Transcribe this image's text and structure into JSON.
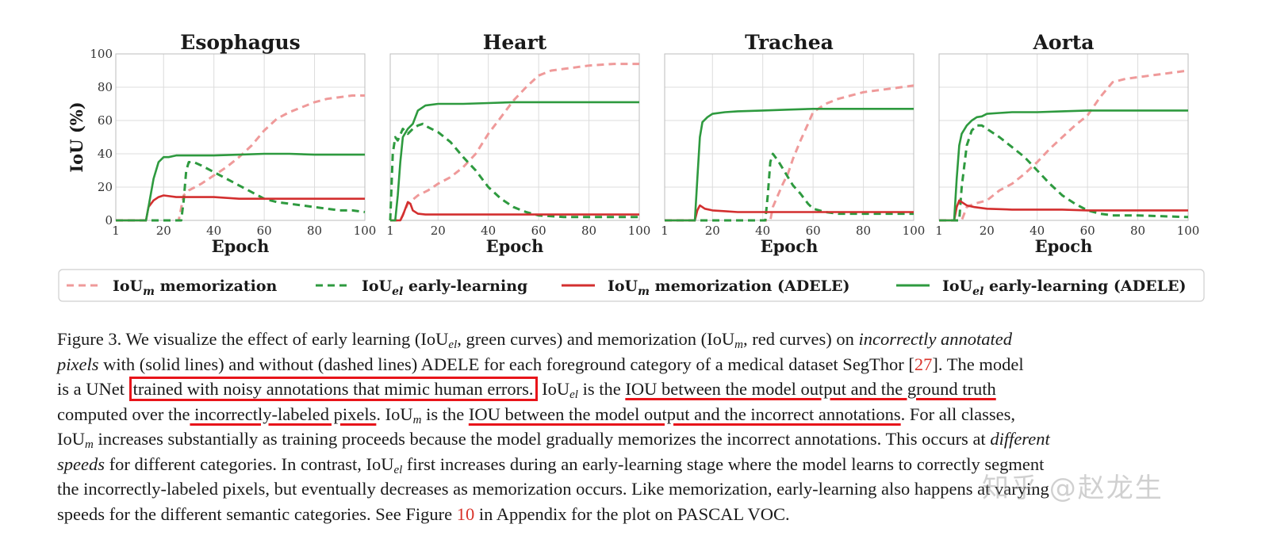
{
  "chart_data": [
    {
      "type": "line",
      "title": "Esophagus",
      "xlabel": "Epoch",
      "ylabel": "IoU (%)",
      "xlim": [
        1,
        100
      ],
      "ylim": [
        0,
        100
      ],
      "xticks": [
        1,
        20,
        40,
        60,
        80,
        100
      ],
      "yticks": [
        0,
        20,
        40,
        60,
        80,
        100
      ],
      "grid": true,
      "series": [
        {
          "name": "IoU_m memorization",
          "x": [
            1,
            13,
            26,
            28,
            30,
            35,
            40,
            45,
            50,
            55,
            60,
            65,
            70,
            75,
            80,
            85,
            90,
            95,
            100
          ],
          "y": [
            0,
            0,
            0,
            15,
            18,
            22,
            27,
            32,
            38,
            45,
            54,
            61,
            65,
            68,
            71,
            73,
            74,
            75,
            75
          ]
        },
        {
          "name": "IoU_el early-learning",
          "x": [
            1,
            27,
            28,
            29,
            30,
            32,
            35,
            40,
            45,
            50,
            55,
            60,
            65,
            70,
            75,
            80,
            85,
            90,
            95,
            100
          ],
          "y": [
            0,
            0,
            12,
            30,
            35,
            35,
            33,
            29,
            25,
            21,
            17,
            13,
            11,
            10,
            9,
            8,
            7,
            6,
            6,
            5
          ]
        },
        {
          "name": "IoU_m memorization (ADELE)",
          "x": [
            1,
            13,
            14,
            16,
            18,
            20,
            25,
            30,
            40,
            50,
            60,
            70,
            80,
            90,
            100
          ],
          "y": [
            0,
            0,
            8,
            12,
            14,
            15,
            14,
            14,
            14,
            13,
            13,
            13,
            13,
            13,
            13
          ]
        },
        {
          "name": "IoU_el early-learning (ADELE)",
          "x": [
            1,
            13,
            14,
            16,
            18,
            20,
            22,
            25,
            30,
            40,
            50,
            60,
            70,
            80,
            90,
            100
          ],
          "y": [
            0,
            0,
            8,
            25,
            35,
            38,
            38,
            39,
            39,
            39,
            39.5,
            40,
            40,
            39.5,
            39.5,
            39.5
          ]
        }
      ]
    },
    {
      "type": "line",
      "title": "Heart",
      "xlabel": "Epoch",
      "xlim": [
        1,
        100
      ],
      "ylim": [
        0,
        100
      ],
      "xticks": [
        1,
        20,
        40,
        60,
        80,
        100
      ],
      "grid": true,
      "series": [
        {
          "name": "IoU_m memorization",
          "x": [
            1,
            3,
            5,
            8,
            12,
            16,
            20,
            25,
            30,
            35,
            40,
            45,
            50,
            55,
            60,
            65,
            70,
            75,
            80,
            85,
            90,
            95,
            100
          ],
          "y": [
            0,
            0,
            0,
            10,
            15,
            18,
            22,
            26,
            32,
            40,
            52,
            62,
            72,
            80,
            87,
            90,
            91,
            92,
            93,
            93.5,
            94,
            94,
            94
          ]
        },
        {
          "name": "IoU_el early-learning",
          "x": [
            1,
            2,
            3,
            4,
            6,
            8,
            10,
            12,
            14,
            16,
            20,
            25,
            30,
            35,
            40,
            45,
            50,
            55,
            60,
            70,
            80,
            90,
            100
          ],
          "y": [
            0,
            40,
            50,
            48,
            55,
            52,
            55,
            57,
            58,
            56,
            53,
            47,
            38,
            30,
            20,
            13,
            8,
            5,
            3,
            2,
            2,
            2,
            2
          ]
        },
        {
          "name": "IoU_m memorization (ADELE)",
          "x": [
            1,
            3,
            5,
            6,
            7,
            8,
            9,
            10,
            12,
            15,
            20,
            30,
            40,
            50,
            60,
            70,
            80,
            90,
            100
          ],
          "y": [
            0,
            0,
            0,
            3,
            7,
            11,
            10,
            6,
            4,
            3.5,
            3.5,
            3.5,
            3.5,
            3.5,
            3.5,
            3.5,
            3.5,
            3.5,
            3.5
          ]
        },
        {
          "name": "IoU_el early-learning (ADELE)",
          "x": [
            1,
            3,
            4,
            5,
            6,
            8,
            10,
            12,
            15,
            20,
            30,
            40,
            50,
            60,
            70,
            80,
            90,
            100
          ],
          "y": [
            0,
            0,
            15,
            35,
            50,
            55,
            58,
            66,
            69,
            70,
            70,
            70.5,
            71,
            71,
            71,
            71,
            71,
            71
          ]
        }
      ]
    },
    {
      "type": "line",
      "title": "Trachea",
      "xlabel": "Epoch",
      "xlim": [
        1,
        100
      ],
      "ylim": [
        0,
        100
      ],
      "xticks": [
        1,
        20,
        40,
        60,
        80,
        100
      ],
      "grid": true,
      "series": [
        {
          "name": "IoU_m memorization",
          "x": [
            1,
            43,
            44,
            46,
            48,
            50,
            52,
            55,
            58,
            60,
            65,
            70,
            75,
            80,
            85,
            90,
            95,
            100
          ],
          "y": [
            0,
            0,
            8,
            15,
            22,
            28,
            37,
            48,
            58,
            65,
            70,
            73,
            75,
            77,
            78,
            79,
            80,
            81
          ]
        },
        {
          "name": "IoU_el early-learning",
          "x": [
            1,
            41,
            42,
            43,
            44,
            46,
            48,
            50,
            52,
            55,
            58,
            60,
            65,
            70,
            80,
            90,
            100
          ],
          "y": [
            0,
            0,
            15,
            35,
            40,
            36,
            31,
            26,
            21,
            16,
            10,
            7,
            5,
            4,
            4,
            4,
            4
          ]
        },
        {
          "name": "IoU_m memorization (ADELE)",
          "x": [
            1,
            13,
            14,
            15,
            17,
            20,
            25,
            30,
            40,
            50,
            60,
            70,
            80,
            90,
            100
          ],
          "y": [
            0,
            0,
            6,
            9,
            7,
            6,
            5.5,
            5,
            5,
            5,
            5,
            5,
            5,
            5,
            5
          ]
        },
        {
          "name": "IoU_el early-learning (ADELE)",
          "x": [
            1,
            13,
            14,
            15,
            16,
            18,
            20,
            25,
            30,
            40,
            50,
            60,
            70,
            80,
            90,
            100
          ],
          "y": [
            0,
            0,
            25,
            50,
            59,
            62,
            64,
            65,
            65.5,
            66,
            66.5,
            67,
            67,
            67,
            67,
            67
          ]
        }
      ]
    },
    {
      "type": "line",
      "title": "Aorta",
      "xlabel": "Epoch",
      "xlim": [
        1,
        100
      ],
      "ylim": [
        0,
        100
      ],
      "xticks": [
        1,
        20,
        40,
        60,
        80,
        100
      ],
      "grid": true,
      "series": [
        {
          "name": "IoU_m memorization",
          "x": [
            1,
            10,
            12,
            15,
            20,
            25,
            30,
            35,
            40,
            45,
            50,
            55,
            60,
            65,
            70,
            75,
            80,
            85,
            90,
            95,
            100
          ],
          "y": [
            0,
            0,
            8,
            10,
            12,
            18,
            22,
            28,
            35,
            43,
            50,
            57,
            63,
            74,
            83,
            85,
            86,
            87,
            88,
            89,
            90
          ]
        },
        {
          "name": "IoU_el early-learning",
          "x": [
            1,
            9,
            10,
            12,
            14,
            16,
            18,
            20,
            25,
            30,
            35,
            40,
            45,
            50,
            55,
            60,
            65,
            70,
            80,
            90,
            100
          ],
          "y": [
            0,
            0,
            20,
            45,
            54,
            57,
            57,
            55,
            50,
            44,
            38,
            30,
            22,
            15,
            10,
            6,
            4,
            3,
            3,
            2.5,
            2
          ]
        },
        {
          "name": "IoU_m memorization (ADELE)",
          "x": [
            1,
            7,
            8,
            9,
            10,
            12,
            15,
            20,
            30,
            40,
            50,
            60,
            70,
            80,
            90,
            100
          ],
          "y": [
            0,
            0,
            8,
            12,
            11,
            9,
            8,
            7,
            6.5,
            6.5,
            6.5,
            6,
            6,
            6,
            6,
            6
          ]
        },
        {
          "name": "IoU_el early-learning (ADELE)",
          "x": [
            1,
            7,
            8,
            9,
            10,
            12,
            14,
            16,
            18,
            20,
            25,
            30,
            40,
            50,
            60,
            70,
            80,
            90,
            100
          ],
          "y": [
            0,
            0,
            25,
            45,
            52,
            57,
            60,
            62,
            62.5,
            64,
            64.5,
            65,
            65,
            65.5,
            66,
            66,
            66,
            66,
            66
          ]
        }
      ]
    }
  ],
  "legend": [
    {
      "label": "IoU",
      "sub": "m",
      "rest": " memorization",
      "color": "#ef9a9a",
      "dash": true
    },
    {
      "label": "IoU",
      "sub": "el",
      "rest": " early-learning",
      "color": "#2e9a3f",
      "dash": true
    },
    {
      "label": "IoU",
      "sub": "m",
      "rest": " memorization (ADELE)",
      "color": "#d32f2f",
      "dash": false
    },
    {
      "label": "IoU",
      "sub": "el",
      "rest": " early-learning (ADELE)",
      "color": "#2e9a3f",
      "dash": false
    }
  ],
  "colors": {
    "memorization": "#ef9a9a",
    "early_learning": "#2e9a3f",
    "memorization_adele": "#d32f2f",
    "early_learning_adele": "#2e9a3f",
    "highlight": "#e8141a",
    "reference": "#d9342b"
  },
  "caption": {
    "l1": {
      "a": "Figure 3. We visualize the effect of early learning (IoU",
      "s1": "el",
      "b": ", green curves) and memorization (IoU",
      "s2": "m",
      "c": ", red curves) on ",
      "d": "incorrectly annotated"
    },
    "l2": {
      "a": "pixels",
      "b": " with (solid lines) and without (dashed lines) ADELE for each foreground category of a medical dataset SegThor [",
      "ref": "27",
      "c": "]. The model"
    },
    "l3": {
      "a": "is a UNet ",
      "box": "trained with noisy annotations that mimic human errors.",
      "b": " IoU",
      "s1": "el",
      "c": " is the ",
      "ul": "IOU between the model output and the ground truth"
    },
    "l4": {
      "a": "computed over the",
      "ul1": " incorrectly-labeled pixels",
      "b": ". IoU",
      "s1": "m",
      "c": " is the ",
      "ul2": "IOU between the model output and the incorrect annotations",
      "d": ". For all classes,"
    },
    "l5": {
      "a": "IoU",
      "s1": "m",
      "b": " increases substantially as training proceeds because the model gradually memorizes the incorrect annotations. This occurs at ",
      "c": "different"
    },
    "l6": {
      "a": "speeds",
      "b": " for different categories. In contrast, IoU",
      "s1": "el",
      "c": " first increases during an early-learning stage where the model learns to correctly segment"
    },
    "l7": {
      "a": "the incorrectly-labeled pixels, but eventually decreases as memorization occurs. Like memorization, early-learning also happens at varying"
    },
    "l8": {
      "a": "speeds for the different semantic categories. See Figure ",
      "ref": "10",
      "b": " in Appendix for the plot on PASCAL VOC."
    }
  },
  "watermark": "知乎 @赵龙生"
}
